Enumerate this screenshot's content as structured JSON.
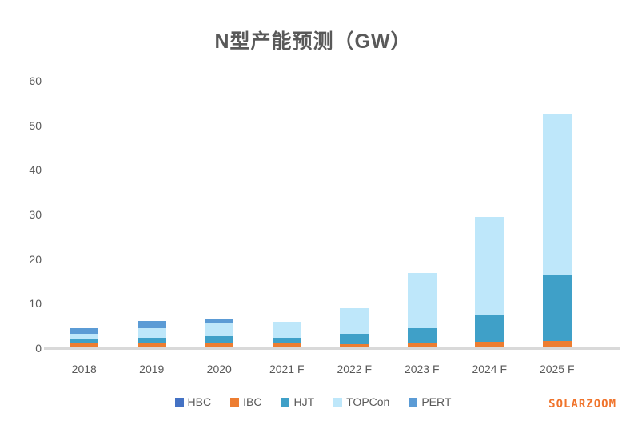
{
  "watermark": "SOLARZOOM",
  "chart_data": {
    "type": "bar",
    "stacked": true,
    "title": "N型产能预测（GW）",
    "xlabel": "",
    "ylabel": "",
    "ylim": [
      0,
      60
    ],
    "yticks": [
      0,
      10,
      20,
      30,
      40,
      50,
      60
    ],
    "grid": false,
    "legend_position": "bottom",
    "categories": [
      "2018",
      "2019",
      "2020",
      "2021 F",
      "2022 F",
      "2023 F",
      "2024 F",
      "2025 F"
    ],
    "series": [
      {
        "name": "HBC",
        "color": "#4472c4",
        "values": [
          0,
          0,
          0,
          0,
          0,
          0,
          0,
          0
        ]
      },
      {
        "name": "IBC",
        "color": "#ed7d31",
        "values": [
          1.0,
          1.0,
          1.0,
          1.0,
          0.8,
          1.0,
          1.2,
          1.4
        ]
      },
      {
        "name": "HJT",
        "color": "#3fa0c8",
        "values": [
          1.0,
          1.2,
          1.6,
          1.2,
          2.2,
          3.3,
          6.0,
          15.0
        ]
      },
      {
        "name": "TOPCon",
        "color": "#bee7fa",
        "values": [
          1.1,
          2.2,
          2.8,
          3.6,
          5.8,
          12.4,
          22.0,
          36.1
        ]
      },
      {
        "name": "PERT",
        "color": "#5b9bd5",
        "values": [
          1.2,
          1.6,
          0.9,
          0,
          0,
          0,
          0,
          0
        ]
      }
    ],
    "totals": [
      4.3,
      6.0,
      6.3,
      5.8,
      8.8,
      16.7,
      29.2,
      52.5
    ]
  }
}
